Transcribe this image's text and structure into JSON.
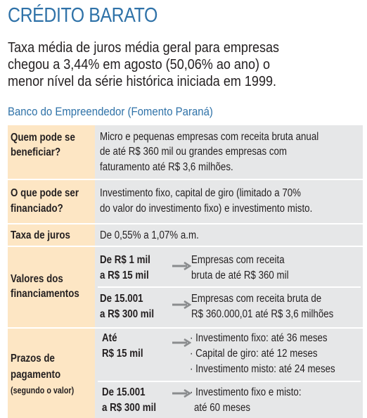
{
  "header": {
    "title": "CRÉDITO BARATO",
    "subtitle_lines": [
      "Taxa média de juros média geral para empresas",
      "chegou a 3,44% em agosto (50,06% ao ano) o",
      "menor nível da série histórica iniciada em 1999."
    ]
  },
  "section": {
    "title": "Banco do Empreendedor (Fomento Paraná)"
  },
  "rows": [
    {
      "label": [
        "Quem pode se",
        "beneficiar?"
      ],
      "text": [
        "Micro e pequenas empresas com receita bruta anual",
        "de até R$ 360 mil ou grandes empresas com",
        "faturamento até R$ 3,6 milhões."
      ]
    },
    {
      "label": [
        "O que pode ser",
        "financiado?"
      ],
      "text": [
        "Investimento fixo, capital de giro (limitado a 70%",
        "do valor do investimento fixo) e investimento misto."
      ]
    },
    {
      "label": [
        "Taxa de juros"
      ],
      "text": [
        "De 0,55% a 1,07% a.m."
      ]
    },
    {
      "label": [
        "Valores dos",
        "financiamentos"
      ],
      "ranges": [
        {
          "range": [
            "De R$ 1 mil",
            "a R$ 15 mil"
          ],
          "detail": [
            "Empresas com receita",
            "bruta de até R$ 360 mil"
          ]
        },
        {
          "range": [
            "De 15.001",
            "a R$ 300 mil"
          ],
          "detail": [
            "Empresas com receita bruta de",
            "R$ 360.000,01 até R$ 3,6 milhões"
          ]
        }
      ]
    },
    {
      "label": [
        "Prazos de",
        "pagamento"
      ],
      "sublabel": "(segundo o valor)",
      "ranges": [
        {
          "range": [
            "Até",
            "R$ 15 mil"
          ],
          "detail": [
            "· Investimento fixo: até 36 meses",
            "· Capital de giro: até 12 meses",
            "· Investimento misto: até 24 meses"
          ]
        },
        {
          "range": [
            "De 15.001",
            "a R$ 300 mil"
          ],
          "detail": [
            "· Investimento fixo e misto:",
            "até 60 meses"
          ]
        }
      ]
    }
  ],
  "colors": {
    "accent": "#2f72a8",
    "label_bg": "#fde6c4",
    "cell_bg": "#e6e7e8",
    "arrow": "#8a8c8e"
  }
}
